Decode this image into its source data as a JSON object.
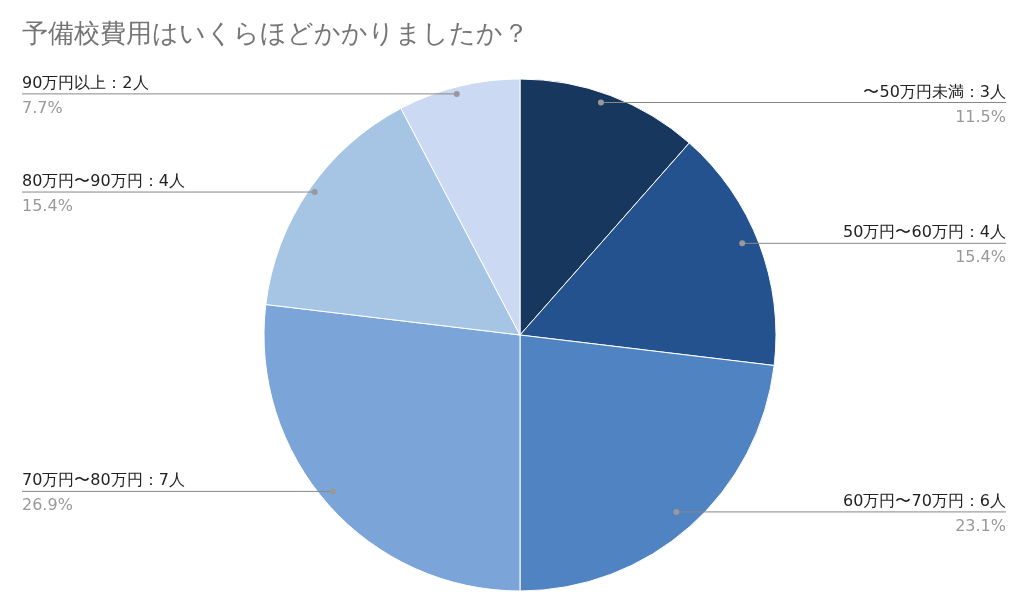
{
  "chart_data": {
    "type": "pie",
    "title": "予備校費用はいくらほどかかりましたか？",
    "categories": [
      "〜50万円未満：3人",
      "50万円〜60万円：4人",
      "60万円〜70万円：6人",
      "70万円〜80万円：7人",
      "80万円〜90万円：4人",
      "90万円以上：2人"
    ],
    "values": [
      11.5,
      15.4,
      23.1,
      26.9,
      15.4,
      7.7
    ],
    "value_labels": [
      "11.5%",
      "15.4%",
      "23.1%",
      "26.9%",
      "15.4%",
      "7.7%"
    ],
    "colors": [
      "#17375e",
      "#24528f",
      "#5083c1",
      "#7ba5d8",
      "#a6c4e4",
      "#cbd9f3"
    ]
  }
}
